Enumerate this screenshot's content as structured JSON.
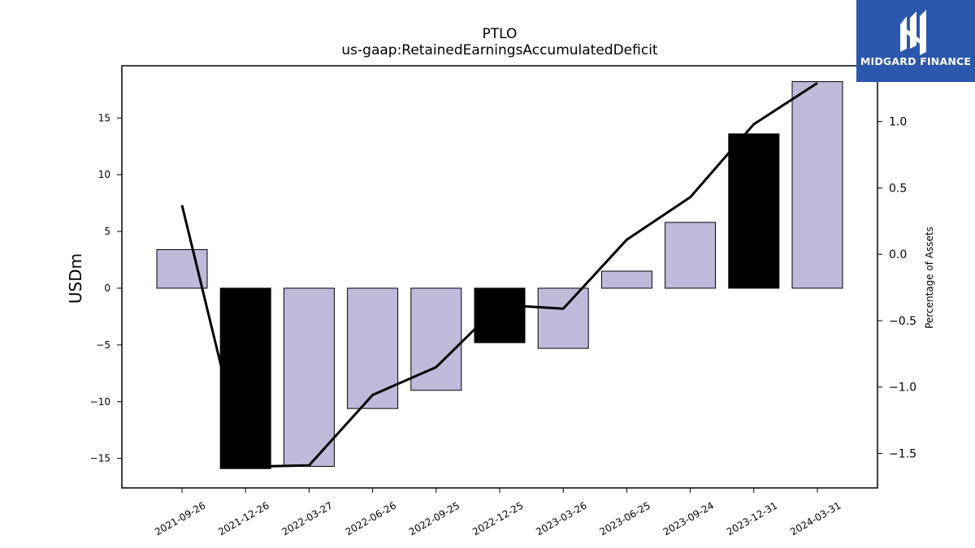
{
  "chart_data": {
    "type": "bar",
    "title": "PTLO",
    "subtitle": "us-gaap:RetainedEarningsAccumulatedDeficit",
    "ylabel": "USDm",
    "y2label": "Percentage of Assets",
    "categories": [
      "2021-09-26",
      "2021-12-26",
      "2022-03-27",
      "2022-06-26",
      "2022-09-25",
      "2022-12-25",
      "2023-03-26",
      "2023-06-25",
      "2023-09-24",
      "2023-12-31",
      "2024-03-31"
    ],
    "values": [
      3.4,
      -15.9,
      -15.7,
      -10.6,
      -9.0,
      -4.8,
      -5.3,
      1.5,
      5.8,
      13.6,
      18.2
    ],
    "bar_colors": [
      "#bebada",
      "#000000",
      "#bebada",
      "#bebada",
      "#bebada",
      "#000000",
      "#bebada",
      "#bebada",
      "#bebada",
      "#000000",
      "#bebada"
    ],
    "line_series": {
      "values": [
        0.37,
        -1.6,
        -1.59,
        -1.06,
        -0.85,
        -0.38,
        -0.41,
        0.11,
        0.43,
        0.98,
        1.29
      ],
      "color": "#000000"
    },
    "ylim": [
      -17.6,
      19.6
    ],
    "y2lim": [
      -1.76,
      1.42
    ],
    "yticks": [
      -15,
      -10,
      -5,
      0,
      5,
      10,
      15
    ],
    "y2ticks": [
      -1.5,
      -1.0,
      -0.5,
      0.0,
      0.5,
      1.0
    ],
    "grid": false
  },
  "logo": {
    "text": "MIDGARD FINANCE",
    "color": "#2b57ad"
  }
}
